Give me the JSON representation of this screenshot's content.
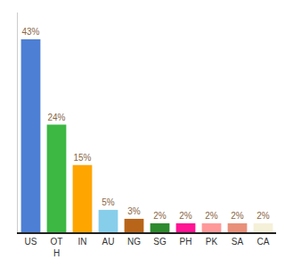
{
  "chart_data": {
    "type": "bar",
    "categories": [
      "US",
      "OT\nH",
      "IN",
      "AU",
      "NG",
      "SG",
      "PH",
      "PK",
      "SA",
      "CA"
    ],
    "values": [
      43,
      24,
      15,
      5,
      3,
      2,
      2,
      2,
      2,
      2
    ],
    "value_labels": [
      "43%",
      "24%",
      "15%",
      "5%",
      "3%",
      "2%",
      "2%",
      "2%",
      "2%",
      "2%"
    ],
    "colors": [
      "#4d7fd4",
      "#3cb843",
      "#ffa500",
      "#87ceeb",
      "#b8651a",
      "#2d8a2d",
      "#ff1493",
      "#ff9999",
      "#e8907a",
      "#f5f0d8"
    ],
    "ylim": [
      0,
      49
    ],
    "grid": false,
    "data_labels": true,
    "tick_labels": "x"
  }
}
